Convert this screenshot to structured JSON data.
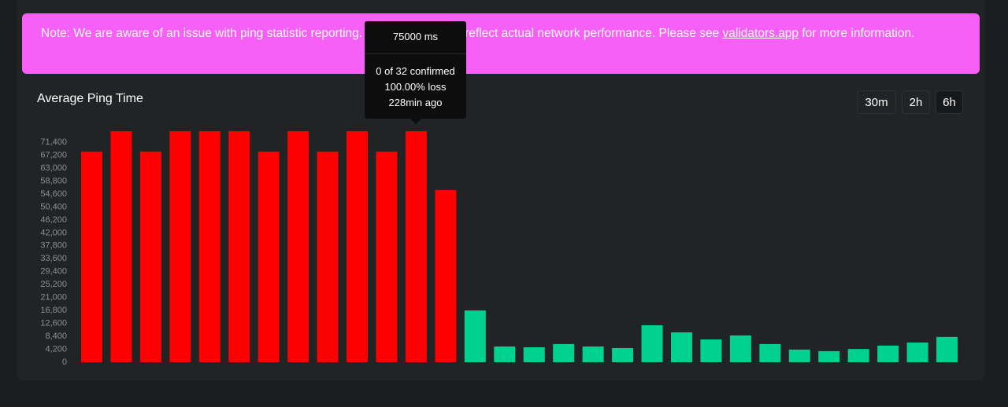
{
  "banner": {
    "text": "Note: We are aware of an issue with ping statistic reporting. Statistics may not reflect actual network performance. Please see",
    "link": "validators.app",
    "tail": "for more information."
  },
  "controls": [
    "30m",
    "2h",
    "6h"
  ],
  "tooltip": {
    "title": "75000 ms",
    "lines": [
      "0 of 32 confirmed",
      "100.00% loss",
      "228min ago"
    ]
  },
  "chart_data": {
    "type": "bar",
    "title": "Average Ping Time",
    "values": [
      68400,
      75000,
      68400,
      75000,
      75000,
      75000,
      68400,
      75000,
      68400,
      75000,
      68400,
      75000,
      55900,
      16800,
      5100,
      4850,
      5900,
      5100,
      4600,
      12000,
      9700,
      7400,
      8700,
      5900,
      4100,
      3600,
      4300,
      5400,
      6400,
      8200
    ],
    "colors": [
      "#ff0000",
      "#ff0000",
      "#ff0000",
      "#ff0000",
      "#ff0000",
      "#ff0000",
      "#ff0000",
      "#ff0000",
      "#ff0000",
      "#ff0000",
      "#ff0000",
      "#ff0000",
      "#ff0000",
      "#00d18c",
      "#00d18c",
      "#00d18c",
      "#00d18c",
      "#00d18c",
      "#00d18c",
      "#00d18c",
      "#00d18c",
      "#00d18c",
      "#00d18c",
      "#00d18c",
      "#00d18c",
      "#00d18c",
      "#00d18c",
      "#00d18c",
      "#00d18c",
      "#00d18c"
    ],
    "ylim": [
      0,
      75000
    ],
    "yticks": [
      0,
      {
        "value": 4200,
        "label": "4,200"
      },
      {
        "value": 8400,
        "label": "8,400"
      },
      {
        "value": 12600,
        "label": "12,600"
      },
      {
        "value": 16800,
        "label": "16,800"
      },
      {
        "value": 21000,
        "label": "21,000"
      },
      {
        "value": 25200,
        "label": "25,200"
      },
      {
        "value": 29400,
        "label": "29,400"
      },
      {
        "value": 33600,
        "label": "33,600"
      },
      {
        "value": 37800,
        "label": "37,800"
      },
      {
        "value": 42000,
        "label": "42,000"
      },
      {
        "value": 46200,
        "label": "46,200"
      },
      {
        "value": 50400,
        "label": "50,400"
      },
      {
        "value": 54600,
        "label": "54,600"
      },
      {
        "value": 58800,
        "label": "58,800"
      },
      {
        "value": 63000,
        "label": "63,000"
      },
      {
        "value": 67200,
        "label": "67,200"
      },
      {
        "value": 71400,
        "label": "71,400"
      }
    ],
    "grid": false
  }
}
